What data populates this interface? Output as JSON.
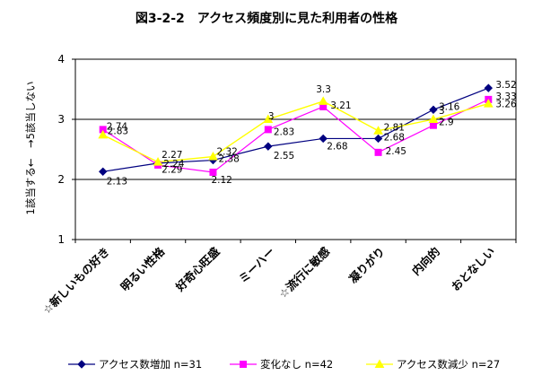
{
  "chart_data": {
    "type": "line",
    "title": "図3-2-2　アクセス頻度別に見た利用者の性格",
    "ylabel": "1該当する←　→5該当しない",
    "ylim": [
      1,
      4
    ],
    "yticks": [
      "1",
      "2",
      "3",
      "4"
    ],
    "categories": [
      "☆新しいもの好き",
      "明るい性格",
      "好奇心旺盛",
      "ミーハー",
      "☆流行に敏感",
      "凝りがり",
      "内向的",
      "おとなしい"
    ],
    "series": [
      {
        "name": "アクセス数増加 n=31",
        "color": "#000080",
        "marker": "diamond",
        "values": [
          2.13,
          2.27,
          2.32,
          2.55,
          2.68,
          2.68,
          3.16,
          3.52
        ],
        "labels": [
          "2.13",
          "2.27",
          "2.32",
          "2.55",
          "2.68",
          "2.68",
          "3.16",
          "3.52"
        ]
      },
      {
        "name": "変化なし n=42",
        "color": "#FF00FF",
        "marker": "square",
        "values": [
          2.83,
          2.24,
          2.12,
          2.83,
          3.21,
          2.45,
          2.9,
          3.33
        ],
        "labels": [
          "2.83",
          "2.24",
          "2.12",
          "2.83",
          "3.21",
          "2.45",
          "2.9",
          "3.33"
        ]
      },
      {
        "name": "アクセス数減少 n=27",
        "color": "#FFFF00",
        "marker": "triangle",
        "values": [
          2.74,
          2.29,
          2.38,
          3.0,
          3.3,
          2.81,
          3.0,
          3.26
        ],
        "labels": [
          "2.74",
          "2.29",
          "2.38",
          "3",
          "3.3",
          "2.81",
          "3",
          "3.26"
        ]
      }
    ]
  }
}
